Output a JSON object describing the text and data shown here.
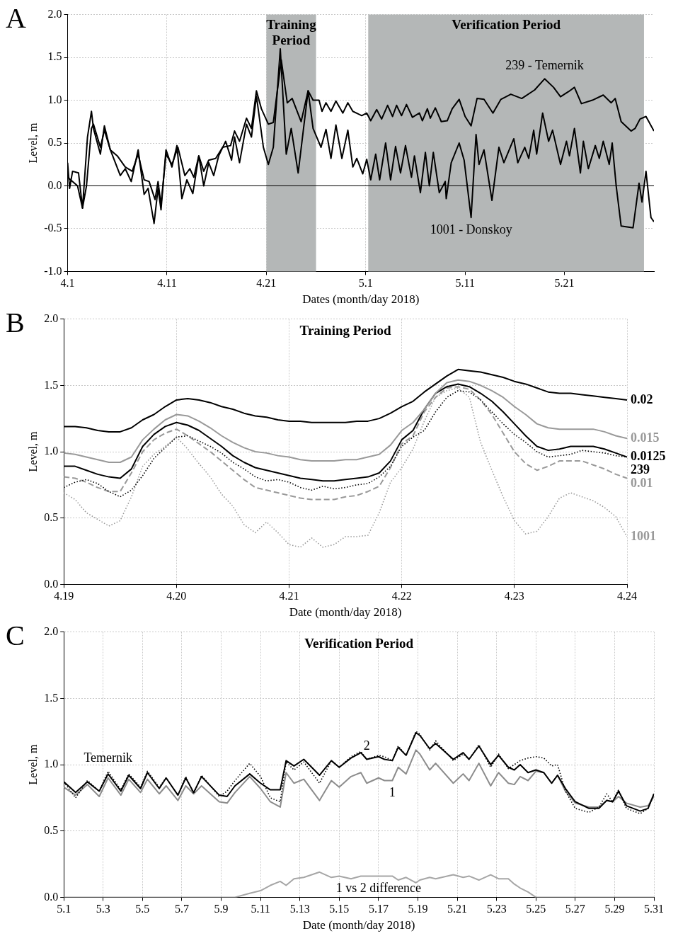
{
  "chart_data": [
    {
      "type": "line",
      "annotations": [
        "A",
        {
          "text": "239 - Temernik",
          "x": "2018-05-19T00:00",
          "y": 1.25
        },
        {
          "text": "1001 - Donskoy",
          "x": "2018-05-11T14:24",
          "y": -0.37
        }
      ],
      "ref_lines": [
        {
          "axis": "y",
          "value": 0,
          "color": "#000000",
          "line_style": "solid"
        }
      ],
      "xlabel": "Dates (month/day 2018)",
      "ylabel": "Level, m",
      "xlim": [
        "2018-04-01",
        "2018-05-30"
      ],
      "xticks": [
        {
          "value": "2018-04-01",
          "label": "4.1"
        },
        {
          "value": "2018-04-11",
          "label": "4.11"
        },
        {
          "value": "2018-04-21",
          "label": "4.21"
        },
        {
          "value": "2018-05-01",
          "label": "5.1"
        },
        {
          "value": "2018-05-11",
          "label": "5.11"
        },
        {
          "value": "2018-05-21",
          "label": "5.21"
        }
      ],
      "ylim": [
        -1,
        2
      ],
      "yticks": [
        {
          "value": -1,
          "label": "-1.0"
        },
        -0.5,
        {
          "value": 0,
          "label": "0.0"
        },
        0.5,
        {
          "value": 1,
          "label": "1.0"
        },
        1.5,
        {
          "value": 2,
          "label": "2.0"
        }
      ],
      "grid": true,
      "bands": [
        {
          "axis": "x",
          "from": "2018-04-21T00:00",
          "to": "2018-04-26T00:00",
          "label": "Training Period",
          "color": "#b4b7b7"
        },
        {
          "axis": "x",
          "from": "2018-05-01T06:00",
          "to": "2018-05-29T00:00",
          "label": "Verification Period",
          "color": "#b4b7b7"
        }
      ],
      "series": [
        {
          "color": "#000000",
          "line_style": "solid",
          "x": [
            "2018-04-01T00:00",
            "2018-04-02T00:00",
            "2018-04-02T12:00",
            "2018-04-02T21:36",
            "2018-04-03T09:36",
            "2018-04-03T14:24",
            "2018-04-04T07:12",
            "2018-04-04T16:48",
            "2018-04-05T07:12",
            "2018-04-06T00:00",
            "2018-04-06T19:12",
            "2018-04-07T12:00",
            "2018-04-08T02:24",
            "2018-04-08T16:48",
            "2018-04-09T04:48",
            "2018-04-09T19:12",
            "2018-04-10T02:24",
            "2018-04-10T09:36",
            "2018-04-10T21:36",
            "2018-04-11T12:00",
            "2018-04-12T02:24",
            "2018-04-12T19:12",
            "2018-04-13T07:12",
            "2018-04-13T16:48",
            "2018-04-14T04:48",
            "2018-04-14T16:48",
            "2018-04-15T04:48",
            "2018-04-15T21:36",
            "2018-04-16T14:24",
            "2018-04-17T09:36",
            "2018-04-17T19:12",
            "2018-04-18T07:12",
            "2018-04-19T00:00",
            "2018-04-19T12:00",
            "2018-04-20T00:00",
            "2018-04-20T12:00",
            "2018-04-21T04:48",
            "2018-04-21T16:48",
            "2018-04-22T12:00",
            "2018-04-23T02:24",
            "2018-04-23T14:24",
            "2018-04-24T12:00",
            "2018-04-25T04:48",
            "2018-04-25T16:48",
            "2018-04-26T07:12",
            "2018-04-26T14:24",
            "2018-04-27T00:00",
            "2018-04-27T12:00",
            "2018-04-28T00:00",
            "2018-04-28T16:48",
            "2018-04-29T04:48",
            "2018-04-29T16:48",
            "2018-04-30T14:24",
            "2018-05-01T02:24",
            "2018-05-01T12:00",
            "2018-05-02T02:24",
            "2018-05-02T14:24",
            "2018-05-03T04:48",
            "2018-05-03T16:48",
            "2018-05-04T02:24",
            "2018-05-04T14:24",
            "2018-05-05T02:24",
            "2018-05-05T16:48",
            "2018-05-06T09:36",
            "2018-05-06T16:48",
            "2018-05-07T04:48",
            "2018-05-07T12:00",
            "2018-05-08T00:00",
            "2018-05-08T14:24",
            "2018-05-09T04:48",
            "2018-05-09T16:48",
            "2018-05-10T09:36",
            "2018-05-11T00:00",
            "2018-05-11T14:24",
            "2018-05-12T04:48",
            "2018-05-12T21:36",
            "2018-05-13T19:12",
            "2018-05-14T14:24",
            "2018-05-15T14:24",
            "2018-05-16T16:48",
            "2018-05-18T00:00",
            "2018-05-19T00:00",
            "2018-05-19T21:36",
            "2018-05-20T14:24",
            "2018-05-21T09:36",
            "2018-05-22T00:00",
            "2018-05-22T16:48",
            "2018-05-23T19:12",
            "2018-05-24T21:36",
            "2018-05-25T16:48",
            "2018-05-26T02:24",
            "2018-05-26T16:48",
            "2018-05-27T16:48",
            "2018-05-28T02:24",
            "2018-05-28T14:24",
            "2018-05-29T04:48",
            "2018-05-30T00:00"
          ],
          "values": [
            0.1,
            0.0,
            -0.26,
            0.0,
            0.67,
            0.72,
            0.45,
            0.65,
            0.42,
            0.35,
            0.22,
            0.17,
            0.37,
            0.07,
            0.05,
            -0.16,
            0.05,
            -0.22,
            0.37,
            0.25,
            0.45,
            0.12,
            0.2,
            0.1,
            0.35,
            0.17,
            0.3,
            0.32,
            0.45,
            0.47,
            0.64,
            0.52,
            0.79,
            0.67,
            1.11,
            0.9,
            0.72,
            0.74,
            1.47,
            0.97,
            1.02,
            0.75,
            1.11,
            1.0,
            1.0,
            0.87,
            0.97,
            0.87,
            0.99,
            0.85,
            0.97,
            0.87,
            0.82,
            0.85,
            0.76,
            0.89,
            0.78,
            0.94,
            0.81,
            0.94,
            0.82,
            0.95,
            0.8,
            0.85,
            0.76,
            0.9,
            0.79,
            0.91,
            0.75,
            0.76,
            0.9,
            1.01,
            0.81,
            0.7,
            1.02,
            1.01,
            0.85,
            1.01,
            1.07,
            1.02,
            1.12,
            1.25,
            1.15,
            1.04,
            1.1,
            1.15,
            0.96,
            1.0,
            1.06,
            0.97,
            1.02,
            0.75,
            0.64,
            0.67,
            0.78,
            0.81,
            0.64
          ]
        },
        {
          "color": "#000000",
          "line_style": "solid",
          "x": [
            "2018-04-01T00:00",
            "2018-04-01T04:48",
            "2018-04-01T12:00",
            "2018-04-02T02:24",
            "2018-04-02T12:00",
            "2018-04-03T00:00",
            "2018-04-03T09:36",
            "2018-04-03T14:24",
            "2018-04-04T07:12",
            "2018-04-04T16:48",
            "2018-04-05T07:12",
            "2018-04-06T07:12",
            "2018-04-06T19:12",
            "2018-04-07T09:36",
            "2018-04-08T02:24",
            "2018-04-08T16:48",
            "2018-04-09T02:24",
            "2018-04-09T16:48",
            "2018-04-10T02:24",
            "2018-04-10T09:36",
            "2018-04-10T21:36",
            "2018-04-11T12:00",
            "2018-04-12T00:00",
            "2018-04-12T12:00",
            "2018-04-13T00:00",
            "2018-04-13T14:24",
            "2018-04-14T04:48",
            "2018-04-14T16:48",
            "2018-04-15T04:48",
            "2018-04-15T16:48",
            "2018-04-16T04:48",
            "2018-04-16T21:36",
            "2018-04-17T12:00",
            "2018-04-17T19:12",
            "2018-04-18T07:12",
            "2018-04-19T00:00",
            "2018-04-19T12:00",
            "2018-04-20T00:00",
            "2018-04-20T16:48",
            "2018-04-21T04:48",
            "2018-04-21T16:48",
            "2018-04-22T09:36",
            "2018-04-23T00:00",
            "2018-04-23T12:00",
            "2018-04-24T04:48",
            "2018-04-25T04:48",
            "2018-04-25T16:48",
            "2018-04-26T12:00",
            "2018-04-27T00:00",
            "2018-04-27T12:00",
            "2018-04-28T00:00",
            "2018-04-28T14:24",
            "2018-04-29T04:48",
            "2018-04-29T16:48",
            "2018-04-30T02:24",
            "2018-04-30T16:48",
            "2018-05-01T02:24",
            "2018-05-01T12:00",
            "2018-05-02T00:00",
            "2018-05-02T09:36",
            "2018-05-03T00:00",
            "2018-05-03T12:00",
            "2018-05-04T00:00",
            "2018-05-04T12:00",
            "2018-05-05T00:00",
            "2018-05-05T14:24",
            "2018-05-05T21:36",
            "2018-05-06T12:00",
            "2018-05-07T00:00",
            "2018-05-07T09:36",
            "2018-05-07T19:12",
            "2018-05-08T09:36",
            "2018-05-09T00:00",
            "2018-05-09T02:24",
            "2018-05-09T14:24",
            "2018-05-10T09:36",
            "2018-05-10T21:36",
            "2018-05-11T14:24",
            "2018-05-12T02:24",
            "2018-05-12T09:36",
            "2018-05-12T21:36",
            "2018-05-13T16:48",
            "2018-05-14T09:36",
            "2018-05-14T21:36",
            "2018-05-15T21:36",
            "2018-05-16T07:12",
            "2018-05-17T00:00",
            "2018-05-17T09:36",
            "2018-05-17T21:36",
            "2018-05-18T04:48",
            "2018-05-18T19:12",
            "2018-05-19T09:36",
            "2018-05-19T19:12",
            "2018-05-20T14:24",
            "2018-05-21T04:48",
            "2018-05-21T12:00",
            "2018-05-22T00:00",
            "2018-05-22T14:24",
            "2018-05-22T21:36",
            "2018-05-23T09:36",
            "2018-05-24T02:24",
            "2018-05-24T12:00",
            "2018-05-24T21:36",
            "2018-05-25T12:00",
            "2018-05-25T19:12",
            "2018-05-26T04:48",
            "2018-05-26T16:48",
            "2018-05-27T21:36",
            "2018-05-28T12:00",
            "2018-05-28T19:12",
            "2018-05-29T04:48",
            "2018-05-29T16:48",
            "2018-05-30T00:00"
          ],
          "values": [
            0.27,
            -0.03,
            0.17,
            0.15,
            -0.26,
            0.57,
            0.87,
            0.67,
            0.37,
            0.7,
            0.42,
            0.12,
            0.2,
            0.05,
            0.42,
            -0.1,
            -0.03,
            -0.44,
            -0.03,
            -0.28,
            0.42,
            0.22,
            0.47,
            -0.15,
            0.07,
            -0.09,
            0.35,
            0.0,
            0.27,
            0.12,
            0.35,
            0.52,
            0.3,
            0.57,
            0.27,
            0.72,
            0.57,
            1.05,
            0.45,
            0.25,
            0.45,
            1.6,
            0.37,
            0.67,
            0.15,
            1.11,
            0.67,
            0.45,
            0.66,
            0.32,
            0.71,
            0.32,
            0.65,
            0.22,
            0.32,
            0.14,
            0.31,
            0.07,
            0.37,
            0.07,
            0.5,
            0.07,
            0.46,
            0.15,
            0.47,
            0.1,
            0.35,
            -0.08,
            0.39,
            0.0,
            0.39,
            -0.08,
            0.05,
            -0.15,
            0.27,
            0.5,
            0.3,
            -0.37,
            0.6,
            0.25,
            0.42,
            -0.17,
            0.45,
            0.27,
            0.55,
            0.27,
            0.45,
            0.32,
            0.65,
            0.37,
            0.85,
            0.52,
            0.65,
            0.25,
            0.52,
            0.35,
            0.67,
            0.15,
            0.52,
            0.2,
            0.47,
            0.32,
            0.52,
            0.25,
            0.5,
            0.0,
            -0.47,
            -0.49,
            0.03,
            -0.19,
            0.17,
            -0.37,
            -0.42
          ]
        }
      ]
    },
    {
      "type": "line",
      "title": "Training Period",
      "annotations": [
        "B"
      ],
      "xlabel": "Date (month/day 2018)",
      "ylabel": "Level, m",
      "xlim": [
        "2018-04-19",
        "2018-04-24"
      ],
      "xticks": [
        {
          "value": "2018-04-19",
          "label": "4.19"
        },
        {
          "value": "2018-04-20",
          "label": "4.20"
        },
        {
          "value": "2018-04-21",
          "label": "4.21"
        },
        {
          "value": "2018-04-22",
          "label": "4.22"
        },
        {
          "value": "2018-04-23",
          "label": "4.23"
        },
        {
          "value": "2018-04-24",
          "label": "4.24"
        }
      ],
      "ylim": [
        0,
        2
      ],
      "yticks": [
        {
          "value": 0,
          "label": "0.0"
        },
        0.5,
        {
          "value": 1,
          "label": "1.0"
        },
        1.5,
        {
          "value": 2,
          "label": "2.0"
        }
      ],
      "grid": true,
      "x": [
        "2018-04-19T00:00",
        "2018-04-19T02:24",
        "2018-04-19T04:48",
        "2018-04-19T07:12",
        "2018-04-19T09:36",
        "2018-04-19T12:00",
        "2018-04-19T14:24",
        "2018-04-19T16:48",
        "2018-04-19T19:12",
        "2018-04-19T21:36",
        "2018-04-20T00:00",
        "2018-04-20T02:24",
        "2018-04-20T04:48",
        "2018-04-20T07:12",
        "2018-04-20T09:36",
        "2018-04-20T12:00",
        "2018-04-20T14:24",
        "2018-04-20T16:48",
        "2018-04-20T19:12",
        "2018-04-20T21:36",
        "2018-04-21T00:00",
        "2018-04-21T02:24",
        "2018-04-21T04:48",
        "2018-04-21T07:12",
        "2018-04-21T09:36",
        "2018-04-21T12:00",
        "2018-04-21T14:24",
        "2018-04-21T16:48",
        "2018-04-21T19:12",
        "2018-04-21T21:36",
        "2018-04-22T00:00",
        "2018-04-22T02:24",
        "2018-04-22T04:48",
        "2018-04-22T07:12",
        "2018-04-22T09:36",
        "2018-04-22T12:00",
        "2018-04-22T14:24",
        "2018-04-22T16:48",
        "2018-04-22T19:12",
        "2018-04-22T21:36",
        "2018-04-23T00:00",
        "2018-04-23T02:24",
        "2018-04-23T04:48",
        "2018-04-23T07:12",
        "2018-04-23T09:36",
        "2018-04-23T12:00",
        "2018-04-23T14:24",
        "2018-04-23T16:48",
        "2018-04-23T19:12",
        "2018-04-23T21:36",
        "2018-04-24T00:00"
      ],
      "series": [
        {
          "name": "0.02",
          "color": "#000000",
          "line_style": "solid",
          "values": [
            1.19,
            1.19,
            1.18,
            1.16,
            1.15,
            1.15,
            1.18,
            1.24,
            1.28,
            1.34,
            1.39,
            1.4,
            1.39,
            1.37,
            1.34,
            1.32,
            1.29,
            1.27,
            1.26,
            1.24,
            1.23,
            1.23,
            1.22,
            1.22,
            1.22,
            1.22,
            1.23,
            1.23,
            1.25,
            1.29,
            1.34,
            1.38,
            1.45,
            1.51,
            1.57,
            1.62,
            1.61,
            1.6,
            1.58,
            1.56,
            1.53,
            1.51,
            1.48,
            1.45,
            1.44,
            1.44,
            1.43,
            1.42,
            1.41,
            1.4,
            1.39
          ]
        },
        {
          "name": "0.015",
          "color": "#999999",
          "line_style": "solid",
          "values": [
            0.99,
            0.98,
            0.96,
            0.94,
            0.92,
            0.92,
            0.96,
            1.09,
            1.17,
            1.24,
            1.28,
            1.27,
            1.23,
            1.18,
            1.12,
            1.07,
            1.03,
            1.0,
            0.99,
            0.97,
            0.96,
            0.94,
            0.93,
            0.93,
            0.93,
            0.94,
            0.94,
            0.96,
            0.98,
            1.05,
            1.16,
            1.22,
            1.32,
            1.44,
            1.52,
            1.54,
            1.53,
            1.5,
            1.46,
            1.41,
            1.34,
            1.28,
            1.21,
            1.18,
            1.17,
            1.17,
            1.17,
            1.17,
            1.15,
            1.12,
            1.1
          ]
        },
        {
          "name": "0.0125",
          "color": "#000000",
          "line_style": "solid",
          "values": [
            0.89,
            0.89,
            0.86,
            0.83,
            0.81,
            0.8,
            0.87,
            1.04,
            1.13,
            1.19,
            1.22,
            1.2,
            1.16,
            1.1,
            1.04,
            0.97,
            0.92,
            0.88,
            0.86,
            0.84,
            0.82,
            0.8,
            0.79,
            0.78,
            0.78,
            0.79,
            0.8,
            0.81,
            0.84,
            0.93,
            1.09,
            1.16,
            1.32,
            1.44,
            1.49,
            1.51,
            1.49,
            1.44,
            1.38,
            1.3,
            1.21,
            1.12,
            1.04,
            1.01,
            1.02,
            1.04,
            1.04,
            1.04,
            1.02,
            0.99,
            0.96
          ]
        },
        {
          "name": "239",
          "color": "#000000",
          "line_style": "dotted",
          "values": [
            0.73,
            0.77,
            0.79,
            0.76,
            0.7,
            0.66,
            0.71,
            0.82,
            0.95,
            1.03,
            1.11,
            1.12,
            1.08,
            1.04,
            0.99,
            0.92,
            0.87,
            0.81,
            0.78,
            0.79,
            0.77,
            0.73,
            0.71,
            0.74,
            0.72,
            0.73,
            0.75,
            0.76,
            0.81,
            0.89,
            1.04,
            1.11,
            1.16,
            1.3,
            1.41,
            1.46,
            1.45,
            1.39,
            1.3,
            1.21,
            1.13,
            1.07,
            1.0,
            0.96,
            0.97,
            0.98,
            1.01,
            1.0,
            0.99,
            0.97,
            0.96
          ]
        },
        {
          "name": "0.01",
          "color": "#999999",
          "line_style": "dashed",
          "values": [
            0.81,
            0.8,
            0.77,
            0.73,
            0.7,
            0.7,
            0.84,
            1.0,
            1.09,
            1.14,
            1.17,
            1.12,
            1.06,
            1.0,
            0.93,
            0.86,
            0.79,
            0.73,
            0.71,
            0.69,
            0.67,
            0.65,
            0.64,
            0.64,
            0.64,
            0.66,
            0.67,
            0.7,
            0.74,
            0.88,
            1.06,
            1.12,
            1.3,
            1.41,
            1.48,
            1.49,
            1.47,
            1.39,
            1.28,
            1.14,
            1.0,
            0.91,
            0.86,
            0.89,
            0.93,
            0.93,
            0.93,
            0.9,
            0.87,
            0.83,
            0.8
          ]
        },
        {
          "name": "1001",
          "color": "#999999",
          "line_style": "dotted",
          "values": [
            0.69,
            0.64,
            0.54,
            0.49,
            0.44,
            0.48,
            0.66,
            0.89,
            0.98,
            1.04,
            1.11,
            1.02,
            0.91,
            0.81,
            0.68,
            0.59,
            0.45,
            0.39,
            0.47,
            0.39,
            0.3,
            0.28,
            0.35,
            0.28,
            0.3,
            0.36,
            0.36,
            0.37,
            0.54,
            0.77,
            0.88,
            1.02,
            1.23,
            1.41,
            1.46,
            1.48,
            1.41,
            1.07,
            0.86,
            0.66,
            0.48,
            0.38,
            0.4,
            0.51,
            0.65,
            0.69,
            0.66,
            0.63,
            0.58,
            0.51,
            0.36
          ]
        }
      ]
    },
    {
      "type": "line",
      "title": "Verification Period",
      "annotations": [
        "C",
        {
          "text": "Temernik",
          "x": "2018-05-03T06:00",
          "y": 0.95
        },
        {
          "text": "2",
          "x": "2018-05-16T09:36",
          "y": 1.04
        },
        {
          "text": "1",
          "x": "2018-05-17T16:48",
          "y": 0.88
        },
        {
          "text": "1 vs 2 difference",
          "x": "2018-05-17T00:00",
          "y": 0.16
        }
      ],
      "xlabel": "Date (month/day 2018)",
      "ylabel": "Level, m",
      "xlim": [
        "2018-05-01",
        "2018-05-31"
      ],
      "xticks": [
        {
          "value": "2018-05-01",
          "label": "5.1"
        },
        {
          "value": "2018-05-03",
          "label": "5.3"
        },
        {
          "value": "2018-05-05",
          "label": "5.5"
        },
        {
          "value": "2018-05-07",
          "label": "5.7"
        },
        {
          "value": "2018-05-09",
          "label": "5.9"
        },
        {
          "value": "2018-05-11",
          "label": "5.11"
        },
        {
          "value": "2018-05-13",
          "label": "5.13"
        },
        {
          "value": "2018-05-15",
          "label": "5.15"
        },
        {
          "value": "2018-05-17",
          "label": "5.17"
        },
        {
          "value": "2018-05-19",
          "label": "5.19"
        },
        {
          "value": "2018-05-21",
          "label": "5.21"
        },
        {
          "value": "2018-05-23",
          "label": "5.23"
        },
        {
          "value": "2018-05-25",
          "label": "5.25"
        },
        {
          "value": "2018-05-27",
          "label": "5.27"
        },
        {
          "value": "2018-05-29",
          "label": "5.29"
        },
        {
          "value": "2018-05-31",
          "label": "5.31"
        }
      ],
      "ylim": [
        0,
        2
      ],
      "yticks": [
        {
          "value": 0,
          "label": "0.0"
        },
        0.5,
        {
          "value": 1,
          "label": "1.0"
        },
        1.5,
        {
          "value": 2,
          "label": "2.0"
        }
      ],
      "grid": true,
      "x": [
        "2018-05-01T00:00",
        "2018-05-01T14:24",
        "2018-05-02T04:48",
        "2018-05-02T19:12",
        "2018-05-03T06:00",
        "2018-05-03T21:36",
        "2018-05-04T07:12",
        "2018-05-04T21:36",
        "2018-05-05T06:00",
        "2018-05-05T20:24",
        "2018-05-06T04:48",
        "2018-05-06T19:12",
        "2018-05-07T04:48",
        "2018-05-07T14:24",
        "2018-05-08T00:00",
        "2018-05-08T21:36",
        "2018-05-09T07:12",
        "2018-05-09T16:48",
        "2018-05-10T10:48",
        "2018-05-11T00:00",
        "2018-05-11T12:00",
        "2018-05-12T00:00",
        "2018-05-12T07:12",
        "2018-05-12T16:48",
        "2018-05-13T04:48",
        "2018-05-14T00:00",
        "2018-05-14T14:24",
        "2018-05-15T00:00",
        "2018-05-15T14:24",
        "2018-05-16T02:24",
        "2018-05-16T09:36",
        "2018-05-17T00:00",
        "2018-05-17T07:12",
        "2018-05-17T16:48",
        "2018-05-18T00:00",
        "2018-05-18T09:36",
        "2018-05-18T21:36",
        "2018-05-19T02:24",
        "2018-05-19T14:24",
        "2018-05-19T21:36",
        "2018-05-20T19:12",
        "2018-05-21T07:12",
        "2018-05-21T14:24",
        "2018-05-22T02:24",
        "2018-05-22T16:48",
        "2018-05-23T02:24",
        "2018-05-23T14:24",
        "2018-05-23T21:36",
        "2018-05-24T04:48",
        "2018-05-24T14:24",
        "2018-05-25T00:00",
        "2018-05-25T09:36",
        "2018-05-25T19:12",
        "2018-05-26T02:24",
        "2018-05-26T12:00",
        "2018-05-27T00:00",
        "2018-05-27T16:48",
        "2018-05-28T04:48",
        "2018-05-28T14:24",
        "2018-05-28T21:36",
        "2018-05-29T04:48",
        "2018-05-29T14:24",
        "2018-05-30T07:12",
        "2018-05-30T16:48",
        "2018-05-31T00:00"
      ],
      "series": [
        {
          "color": "#000000",
          "line_style": "dotted",
          "values": [
            0.87,
            0.75,
            0.88,
            0.8,
            0.95,
            0.81,
            0.93,
            0.83,
            0.95,
            0.83,
            0.9,
            0.77,
            0.91,
            0.78,
            0.92,
            0.76,
            0.8,
            0.88,
            1.01,
            0.91,
            0.75,
            0.72,
            1.02,
            0.96,
            1.02,
            0.86,
            1.03,
            0.98,
            1.06,
            1.1,
            1.04,
            1.07,
            1.06,
            1.03,
            1.14,
            1.07,
            1.25,
            1.23,
            1.11,
            1.18,
            1.03,
            1.08,
            1.04,
            1.15,
            0.98,
            1.08,
            0.97,
            1.0,
            1.03,
            1.05,
            1.06,
            1.05,
            0.99,
            1.0,
            0.8,
            0.67,
            0.64,
            0.68,
            0.78,
            0.72,
            0.81,
            0.67,
            0.63,
            0.67,
            0.78
          ]
        },
        {
          "color": "#000000",
          "line_style": "solid",
          "values": [
            0.87,
            0.79,
            0.87,
            0.8,
            0.93,
            0.8,
            0.92,
            0.82,
            0.94,
            0.82,
            0.9,
            0.77,
            0.9,
            0.79,
            0.91,
            0.77,
            0.76,
            0.84,
            0.93,
            0.86,
            0.81,
            0.81,
            1.03,
            0.99,
            1.04,
            0.92,
            1.03,
            0.98,
            1.05,
            1.09,
            1.04,
            1.06,
            1.04,
            1.03,
            1.13,
            1.07,
            1.24,
            1.22,
            1.12,
            1.16,
            1.04,
            1.09,
            1.04,
            1.14,
            1.0,
            1.07,
            0.98,
            0.96,
            1.0,
            0.94,
            0.96,
            0.94,
            0.86,
            0.92,
            0.82,
            0.72,
            0.67,
            0.67,
            0.73,
            0.72,
            0.8,
            0.69,
            0.65,
            0.67,
            0.78
          ]
        },
        {
          "color": "#8c8c8c",
          "line_style": "solid",
          "values": [
            0.83,
            0.77,
            0.85,
            0.76,
            0.9,
            0.77,
            0.89,
            0.79,
            0.89,
            0.78,
            0.84,
            0.73,
            0.84,
            0.78,
            0.84,
            0.72,
            0.71,
            0.79,
            0.91,
            0.82,
            0.72,
            0.68,
            0.94,
            0.86,
            0.89,
            0.73,
            0.88,
            0.83,
            0.91,
            0.94,
            0.86,
            0.9,
            0.88,
            0.88,
            0.98,
            0.93,
            1.11,
            1.08,
            0.96,
            1.01,
            0.86,
            0.93,
            0.88,
            1.01,
            0.84,
            0.94,
            0.86,
            0.85,
            0.91,
            0.88,
            0.95,
            0.94,
            0.86,
            0.92,
            0.8,
            0.71,
            0.68,
            0.68,
            0.73,
            0.72,
            0.76,
            0.71,
            0.68,
            0.69,
            0.76
          ]
        },
        {
          "color": "#a6a6a6",
          "line_style": "solid",
          "values": [
            0,
            0,
            0,
            0,
            0,
            0,
            0,
            0,
            0,
            0,
            0,
            0,
            0,
            0,
            0,
            0,
            0,
            0,
            0.03,
            0.05,
            0.09,
            0.12,
            0.09,
            0.14,
            0.15,
            0.19,
            0.15,
            0.16,
            0.14,
            0.16,
            0.16,
            0.16,
            0.16,
            0.16,
            0.13,
            0.15,
            0.11,
            0.13,
            0.15,
            0.14,
            0.17,
            0.15,
            0.16,
            0.13,
            0.17,
            0.14,
            0.14,
            0.1,
            0.07,
            0.04,
            0,
            0,
            0,
            0,
            0,
            0,
            0,
            0,
            0,
            0,
            0,
            0,
            0,
            0,
            0
          ]
        }
      ]
    }
  ]
}
